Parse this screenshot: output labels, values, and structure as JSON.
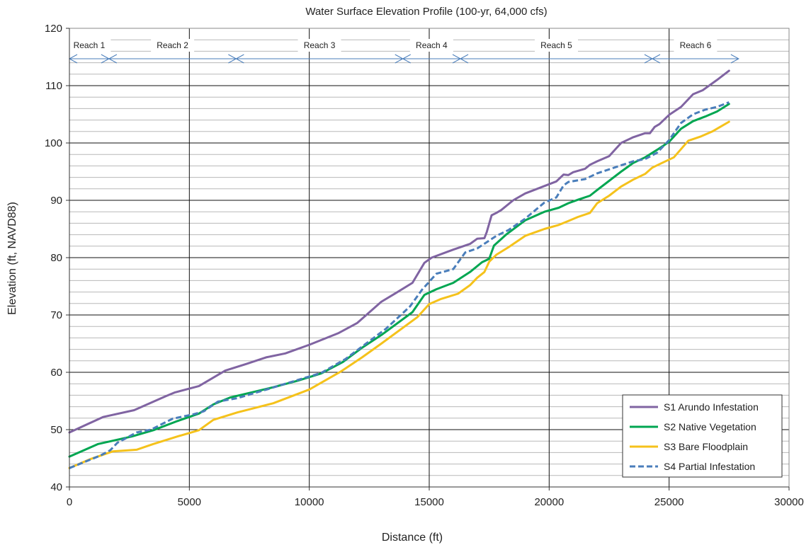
{
  "chart_data": {
    "type": "line",
    "title": "Water Surface Elevation  Profile (100-yr, 64,000 cfs)",
    "xlabel": "Distance (ft)",
    "ylabel": "Elevation (ft, NAVD88)",
    "xlim": [
      0,
      30000
    ],
    "ylim": [
      40,
      120
    ],
    "xticks": [
      "0",
      "5000",
      "10000",
      "15000",
      "20000",
      "25000",
      "30000"
    ],
    "yticks": [
      "40",
      "50",
      "60",
      "70",
      "80",
      "90",
      "100",
      "110",
      "120"
    ],
    "grid": "major and minor horizontal; major vertical",
    "legend_position": "bottom-right",
    "reaches": [
      {
        "label": "Reach 1",
        "from": 0,
        "to": 1650
      },
      {
        "label": "Reach 2",
        "from": 1650,
        "to": 6950
      },
      {
        "label": "Reach 3",
        "from": 6950,
        "to": 13900
      },
      {
        "label": "Reach 4",
        "from": 13900,
        "to": 16300
      },
      {
        "label": "Reach 5",
        "from": 16300,
        "to": 24300
      },
      {
        "label": "Reach 6",
        "from": 24300,
        "to": 27900
      }
    ],
    "series": [
      {
        "name": "S1 Arundo Infestation",
        "color": "#8064A2",
        "dash": "solid",
        "x": [
          0,
          1400,
          2700,
          4000,
          4400,
          5400,
          6500,
          7400,
          8200,
          9000,
          10000,
          11200,
          12000,
          13000,
          13600,
          14300,
          14800,
          15100,
          16000,
          16700,
          17000,
          17300,
          17400,
          17600,
          17800,
          18000,
          18500,
          19000,
          19800,
          20300,
          20600,
          20800,
          21000,
          21500,
          21700,
          22000,
          22500,
          23000,
          23500,
          24000,
          24200,
          24400,
          24600,
          25000,
          25500,
          26000,
          26400,
          27000,
          27500
        ],
        "y": [
          49.5,
          52.2,
          53.4,
          55.8,
          56.5,
          57.6,
          60.3,
          61.5,
          62.6,
          63.3,
          64.8,
          66.8,
          68.6,
          72.3,
          73.8,
          75.6,
          79.1,
          80.0,
          81.4,
          82.4,
          83.3,
          83.4,
          84.5,
          87.4,
          87.8,
          88.3,
          90.0,
          91.2,
          92.5,
          93.3,
          94.5,
          94.4,
          94.9,
          95.5,
          96.2,
          96.8,
          97.7,
          100.0,
          101.0,
          101.7,
          101.7,
          102.8,
          103.3,
          104.9,
          106.3,
          108.5,
          109.2,
          111.0,
          112.6
        ]
      },
      {
        "name": "S2 Native Vegetation",
        "color": "#00A651",
        "dash": "solid",
        "x": [
          0,
          1200,
          2600,
          3500,
          4500,
          5400,
          6000,
          6700,
          7500,
          8500,
          9500,
          10500,
          11400,
          12200,
          13000,
          14300,
          14800,
          15300,
          16000,
          16700,
          17200,
          17500,
          17700,
          18200,
          19000,
          19800,
          20400,
          20800,
          21200,
          21700,
          22000,
          22500,
          23000,
          23500,
          24000,
          24500,
          25000,
          25500,
          26000,
          26500,
          27000,
          27500
        ],
        "y": [
          45.3,
          47.5,
          48.8,
          49.9,
          51.5,
          52.8,
          54.4,
          55.6,
          56.4,
          57.4,
          58.5,
          59.8,
          61.8,
          64.3,
          66.5,
          70.5,
          73.5,
          74.5,
          75.6,
          77.5,
          79.2,
          79.8,
          82.1,
          84.0,
          86.5,
          88.0,
          88.7,
          89.5,
          90.1,
          90.8,
          91.8,
          93.4,
          95.0,
          96.5,
          97.5,
          98.8,
          100.2,
          102.5,
          103.8,
          104.6,
          105.5,
          106.8
        ]
      },
      {
        "name": "S3 Bare Floodplain",
        "color": "#F5C21B",
        "dash": "solid",
        "x": [
          0,
          900,
          1800,
          2800,
          3500,
          4500,
          5400,
          6000,
          7000,
          8500,
          10000,
          11300,
          12200,
          13000,
          14500,
          15000,
          15500,
          16200,
          16700,
          17000,
          17300,
          17500,
          17800,
          18300,
          19000,
          19800,
          20400,
          20800,
          21200,
          21700,
          22000,
          22500,
          23000,
          23500,
          24000,
          24300,
          24700,
          25200,
          25800,
          26300,
          26800,
          27500
        ],
        "y": [
          43.3,
          44.9,
          46.2,
          46.5,
          47.5,
          48.8,
          49.9,
          51.7,
          53.0,
          54.6,
          57.0,
          60.1,
          62.6,
          65.0,
          69.6,
          71.9,
          72.8,
          73.7,
          75.2,
          76.5,
          77.5,
          79.3,
          80.5,
          81.8,
          83.8,
          85.0,
          85.7,
          86.4,
          87.1,
          87.8,
          89.5,
          90.8,
          92.4,
          93.6,
          94.6,
          95.7,
          96.5,
          97.5,
          100.4,
          101.1,
          102.0,
          103.7
        ]
      },
      {
        "name": "S4 Partial Infestation",
        "color": "#4A7EBB",
        "dash": "dashed",
        "x": [
          0,
          1300,
          1700,
          2000,
          2800,
          3400,
          4300,
          5200,
          5600,
          6200,
          7000,
          8300,
          9000,
          10500,
          11500,
          12300,
          13200,
          14200,
          14700,
          15300,
          16000,
          16500,
          17000,
          17400,
          17800,
          18300,
          19000,
          19800,
          20300,
          20600,
          20800,
          21500,
          21700,
          22000,
          22500,
          23000,
          23500,
          24000,
          24500,
          25000,
          25500,
          26000,
          26500,
          27000,
          27500
        ],
        "y": [
          43.3,
          45.5,
          46.4,
          47.7,
          49.5,
          50.0,
          51.9,
          52.7,
          53.2,
          54.9,
          55.5,
          57.1,
          58.0,
          59.9,
          62.3,
          64.8,
          67.6,
          71.5,
          74.4,
          77.2,
          78.0,
          80.9,
          81.6,
          82.7,
          83.8,
          84.8,
          86.8,
          89.6,
          90.5,
          92.6,
          93.2,
          93.7,
          94.1,
          94.7,
          95.4,
          96.1,
          96.8,
          97.2,
          98.3,
          100.5,
          103.5,
          105.0,
          105.8,
          106.3,
          107.1
        ]
      }
    ]
  }
}
